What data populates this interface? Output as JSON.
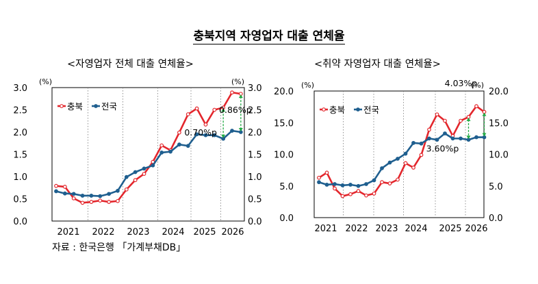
{
  "title": "충북지역 자영업자 대출 연체율",
  "source": "자료 : 한국은행 「가계부채DB」",
  "colors": {
    "chungbuk": "#e3262c",
    "national": "#1f5f8f",
    "delta": "#22aa44"
  },
  "chart_data": [
    {
      "type": "line",
      "title": "<자영업자 전체 대출 연체율>",
      "unit_label": "(%)",
      "ylim": [
        0,
        3.0
      ],
      "yticks": [
        "0.0",
        "0.5",
        "1.0",
        "1.5",
        "2.0",
        "2.5",
        "3.0"
      ],
      "x_labels": [
        "2021",
        "2022",
        "2023",
        "2024",
        "2025",
        "2026"
      ],
      "legend": "top-left",
      "grid": false,
      "series": [
        {
          "name": "충북",
          "values": [
            0.79,
            0.77,
            0.51,
            0.41,
            0.43,
            0.46,
            0.43,
            0.45,
            0.71,
            0.92,
            1.06,
            1.33,
            1.7,
            1.59,
            1.99,
            2.4,
            2.53,
            2.17,
            2.5,
            2.55,
            2.89,
            2.86
          ]
        },
        {
          "name": "전국",
          "values": [
            0.67,
            0.62,
            0.61,
            0.57,
            0.57,
            0.56,
            0.61,
            0.68,
            0.99,
            1.1,
            1.18,
            1.25,
            1.54,
            1.56,
            1.72,
            1.69,
            1.95,
            1.93,
            1.93,
            1.85,
            2.03,
            2.0
          ]
        }
      ],
      "annotations": [
        {
          "text": "0.70%p",
          "index": 19
        },
        {
          "text": "0.86%p",
          "index": 21
        }
      ]
    },
    {
      "type": "line",
      "title": "<취약 자영업자 대출 연체율>",
      "unit_label": "(%)",
      "ylim": [
        0,
        20.0
      ],
      "yticks": [
        "0.0",
        "5.0",
        "10.0",
        "15.0",
        "20.0"
      ],
      "x_labels": [
        "2021",
        "2022",
        "2023",
        "2024",
        "2025",
        "2026"
      ],
      "legend": "top-left",
      "grid": false,
      "series": [
        {
          "name": "충북",
          "values": [
            6.3,
            7.1,
            4.6,
            3.4,
            3.7,
            4.2,
            3.5,
            3.8,
            5.6,
            5.4,
            6.0,
            8.6,
            7.9,
            9.9,
            13.9,
            16.3,
            15.3,
            12.9,
            15.3,
            15.9,
            17.6,
            16.7
          ]
        },
        {
          "name": "전국",
          "values": [
            5.6,
            5.2,
            5.3,
            5.1,
            5.2,
            5.0,
            5.3,
            5.9,
            7.8,
            8.7,
            9.3,
            10.1,
            11.8,
            11.7,
            12.5,
            12.3,
            13.3,
            12.5,
            12.5,
            12.3,
            12.7,
            12.7
          ]
        }
      ],
      "annotations": [
        {
          "text": "3.60%p",
          "index": 19
        },
        {
          "text": "4.03%p",
          "index": 21
        }
      ]
    }
  ]
}
